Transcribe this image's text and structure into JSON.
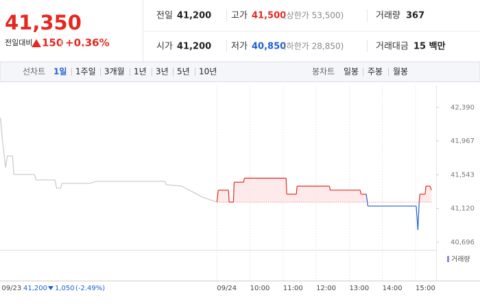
{
  "quote": {
    "price": "41,350",
    "change_caption": "전일대비",
    "change": "150",
    "change_rate": "+0.36%"
  },
  "stats": [
    {
      "label": "전일",
      "value": "41,200"
    },
    {
      "label": "고가",
      "value": "41,500",
      "note": "(상한가 53,500)"
    },
    {
      "label": "거래량",
      "value": "367"
    },
    {
      "label": "시가",
      "value": "41,200"
    },
    {
      "label": "저가",
      "value": "40,850",
      "note": "(하한가 28,850)"
    },
    {
      "label": "거래대금",
      "value": "15 백만"
    }
  ],
  "tabs": {
    "line_label": "선차트",
    "line_periods": [
      "1일",
      "1주일",
      "3개월",
      "1년",
      "3년",
      "5년",
      "10년"
    ],
    "candle_label": "봉차트",
    "candle_periods": [
      "일봉",
      "주봉",
      "월봉"
    ]
  },
  "chart_data": {
    "type": "line",
    "series": [
      {
        "color": "#c8c8c8",
        "x": [
          2.46,
          2.54,
          2.62,
          2.67,
          2.83,
          2.87,
          3.49,
          3.54,
          4.11,
          4.16,
          4.28,
          4.32,
          5.15,
          5.36,
          7.43,
          7.47,
          7.94,
          8.25,
          8.56,
          8.98
        ],
        "values": [
          42261,
          41917,
          41633,
          41779,
          41779,
          41547,
          41547,
          41478,
          41478,
          41375,
          41375,
          41435,
          41435,
          41461,
          41461,
          41418,
          41401,
          41332,
          41263,
          41203
        ]
      },
      {
        "color": "#e5281f",
        "down_color": "#1f5fd1",
        "x": [
          9.0,
          9.04,
          9.35,
          9.37,
          9.5,
          9.52,
          9.81,
          9.83,
          11.09,
          11.11,
          11.4,
          11.42,
          12.4,
          12.42,
          13.33,
          13.35,
          13.51,
          13.56,
          15.02,
          15.07,
          15.11,
          15.13,
          15.29,
          15.31,
          15.44,
          15.48
        ],
        "values": [
          41200,
          41350,
          41350,
          41200,
          41200,
          41450,
          41450,
          41500,
          41500,
          41300,
          41300,
          41400,
          41400,
          41350,
          41350,
          41300,
          41300,
          41150,
          41150,
          40850,
          41200,
          41300,
          41300,
          41400,
          41400,
          41350
        ]
      }
    ],
    "baseline": 41200,
    "xlim": [
      2.45,
      15.6
    ],
    "ylim": [
      40600,
      42665
    ],
    "yticks": [
      {
        "value": 42390,
        "label": "42,390"
      },
      {
        "value": 41967,
        "label": "41,967"
      },
      {
        "value": 41543,
        "label": "41,543"
      },
      {
        "value": 41120,
        "label": "41,120"
      },
      {
        "value": 40696,
        "label": "40,696"
      }
    ],
    "xticks": [
      {
        "value": 2.5,
        "label": "09/23"
      },
      {
        "value": 9,
        "label": "09/24"
      },
      {
        "value": 10,
        "label": "10:00"
      },
      {
        "value": 11,
        "label": "11:00"
      },
      {
        "value": 12,
        "label": "12:00"
      },
      {
        "value": 13,
        "label": "13:00"
      },
      {
        "value": 14,
        "label": "14:00"
      },
      {
        "value": 15,
        "label": "15:00"
      }
    ],
    "volume_label": "거래량",
    "prev_summary": {
      "close": "41,200",
      "change": "1,050",
      "rate": "(-2.49%)"
    }
  }
}
